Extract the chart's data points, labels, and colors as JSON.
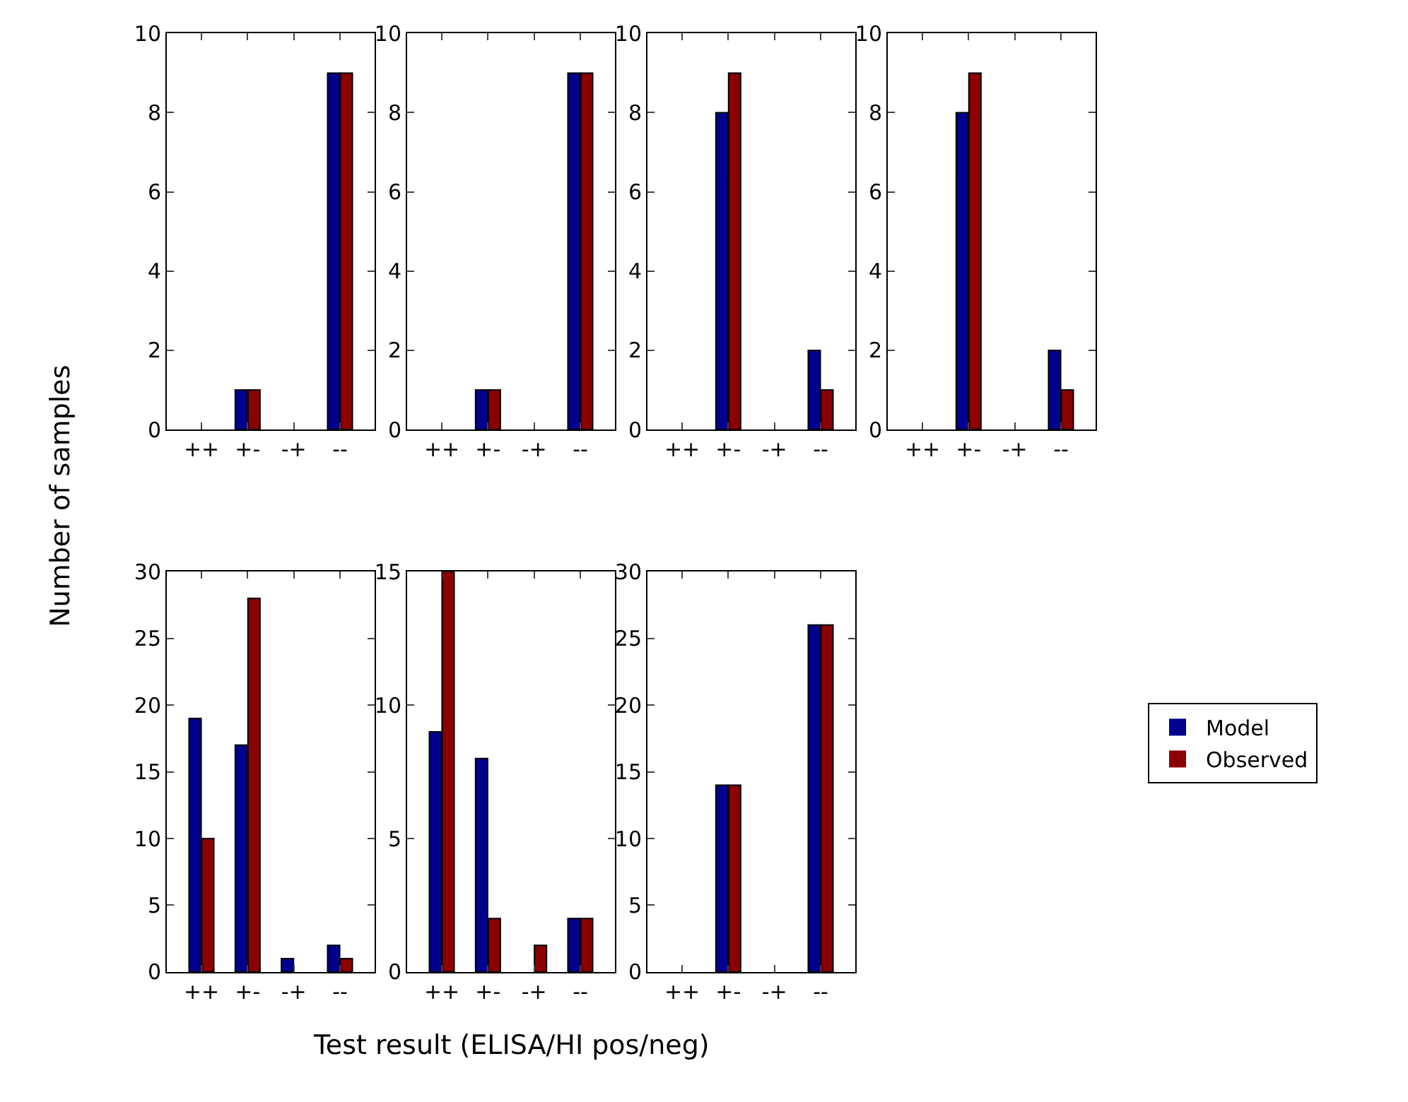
{
  "chart_data": [
    {
      "type": "bar",
      "ylabel": "Number of samples",
      "categories": [
        "++",
        "+-",
        "-+",
        "--"
      ],
      "ylim": [
        0,
        10
      ],
      "yticks": [
        0,
        2,
        4,
        6,
        8,
        10
      ],
      "series": [
        {
          "color": "#00008f",
          "values": [
            0,
            1,
            0,
            9
          ]
        },
        {
          "color": "#8b0000",
          "values": [
            0,
            1,
            0,
            9
          ]
        }
      ]
    },
    {
      "type": "bar",
      "categories": [
        "++",
        "+-",
        "-+",
        "--"
      ],
      "ylim": [
        0,
        10
      ],
      "yticks": [
        0,
        2,
        4,
        6,
        8,
        10
      ],
      "series": [
        {
          "color": "#00008f",
          "values": [
            0,
            1,
            0,
            9
          ]
        },
        {
          "color": "#8b0000",
          "values": [
            0,
            1,
            0,
            9
          ]
        }
      ]
    },
    {
      "type": "bar",
      "categories": [
        "++",
        "+-",
        "-+",
        "--"
      ],
      "ylim": [
        0,
        10
      ],
      "yticks": [
        0,
        2,
        4,
        6,
        8,
        10
      ],
      "series": [
        {
          "color": "#00008f",
          "values": [
            0,
            8,
            0,
            2
          ]
        },
        {
          "color": "#8b0000",
          "values": [
            0,
            9,
            0,
            1
          ]
        }
      ]
    },
    {
      "type": "bar",
      "categories": [
        "++",
        "+-",
        "-+",
        "--"
      ],
      "ylim": [
        0,
        10
      ],
      "yticks": [
        0,
        2,
        4,
        6,
        8,
        10
      ],
      "series": [
        {
          "color": "#00008f",
          "values": [
            0,
            8,
            0,
            2
          ]
        },
        {
          "color": "#8b0000",
          "values": [
            0,
            9,
            0,
            1
          ]
        }
      ]
    },
    {
      "type": "bar",
      "categories": [
        "++",
        "+-",
        "-+",
        "--"
      ],
      "ylim": [
        0,
        30
      ],
      "yticks": [
        0,
        5,
        10,
        15,
        20,
        25,
        30
      ],
      "series": [
        {
          "color": "#00008f",
          "values": [
            19,
            17,
            1,
            2
          ]
        },
        {
          "color": "#8b0000",
          "values": [
            10,
            28,
            0,
            1
          ]
        }
      ]
    },
    {
      "type": "bar",
      "xlabel": "Test result (ELISA/HI pos/neg)",
      "categories": [
        "++",
        "+-",
        "-+",
        "--"
      ],
      "ylim": [
        0,
        15
      ],
      "yticks": [
        0,
        5,
        10,
        15
      ],
      "series": [
        {
          "color": "#00008f",
          "values": [
            9,
            8,
            0,
            2
          ]
        },
        {
          "color": "#8b0000",
          "values": [
            15,
            2,
            1,
            2
          ]
        }
      ]
    },
    {
      "type": "bar",
      "categories": [
        "++",
        "+-",
        "-+",
        "--"
      ],
      "ylim": [
        0,
        30
      ],
      "yticks": [
        0,
        5,
        10,
        15,
        20,
        25,
        30
      ],
      "legend": "right",
      "series": [
        {
          "name": "Model",
          "color": "#00008f",
          "values": [
            0,
            14,
            0,
            26
          ]
        },
        {
          "name": "Observed",
          "color": "#8b0000",
          "values": [
            0,
            14,
            0,
            26
          ]
        }
      ]
    }
  ]
}
